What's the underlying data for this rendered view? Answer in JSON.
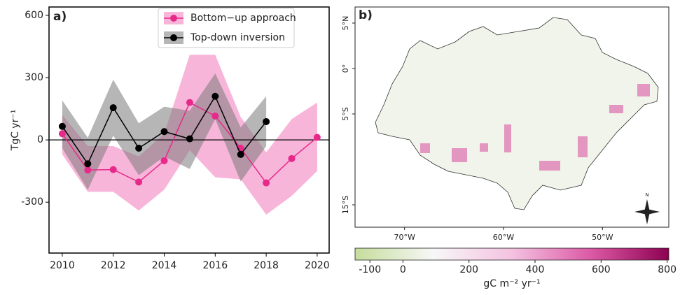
{
  "chart_data": [
    {
      "type": "line",
      "panel_label": "a)",
      "ylabel": "TgC yr⁻¹",
      "x": [
        2010,
        2011,
        2012,
        2013,
        2014,
        2015,
        2016,
        2017,
        2018,
        2019,
        2020
      ],
      "xlim": [
        2009.48,
        2020.47
      ],
      "xticks": [
        2010,
        2012,
        2014,
        2016,
        2018,
        2020
      ],
      "ylim": [
        -545,
        640
      ],
      "yticks": [
        -300,
        0,
        300,
        600
      ],
      "reference_line": 0,
      "legend": "upper center",
      "series": [
        {
          "name": "Bottom−up approach",
          "color": "#e7298a",
          "band_color": "#f7a8d3",
          "values": [
            30,
            -145,
            -143,
            -203,
            -100,
            180,
            115,
            -40,
            -207,
            -90,
            12
          ],
          "lower": [
            -70,
            -250,
            -250,
            -340,
            -240,
            -50,
            -180,
            -190,
            -360,
            -270,
            -150
          ],
          "upper": [
            120,
            -30,
            -30,
            -80,
            30,
            410,
            410,
            110,
            -60,
            100,
            180
          ]
        },
        {
          "name": "Top-down inversion",
          "color": "#000000",
          "band_color": "#7a7a7a",
          "values": [
            65,
            -115,
            155,
            -40,
            40,
            5,
            210,
            -70,
            88,
            null,
            null
          ],
          "lower": [
            -40,
            -240,
            20,
            -170,
            -80,
            -140,
            100,
            -200,
            -30,
            null,
            null
          ],
          "upper": [
            190,
            10,
            290,
            80,
            160,
            140,
            320,
            60,
            210,
            null,
            null
          ]
        }
      ]
    },
    {
      "type": "map",
      "panel_label": "b)",
      "xlim": [
        -75,
        -43.3
      ],
      "ylim": [
        -17.46,
        6.77
      ],
      "xticks": [
        {
          "value": -70,
          "label": "70°W"
        },
        {
          "value": -60,
          "label": "60°W"
        },
        {
          "value": -50,
          "label": "50°W"
        }
      ],
      "yticks": [
        {
          "value": 5,
          "label": "5°N"
        },
        {
          "value": 0,
          "label": "0°"
        },
        {
          "value": -5,
          "label": "5°S"
        },
        {
          "value": -15,
          "label": "15°S"
        }
      ],
      "colorbar": {
        "label": "gC m⁻² yr⁻¹",
        "clim": [
          -145,
          805
        ],
        "ticks": [
          -100,
          0,
          200,
          400,
          600,
          800
        ],
        "colors": [
          "#c5dd9c",
          "#f7f7f7",
          "#f4c2e0",
          "#dc5aa6",
          "#8e0152"
        ]
      }
    }
  ]
}
